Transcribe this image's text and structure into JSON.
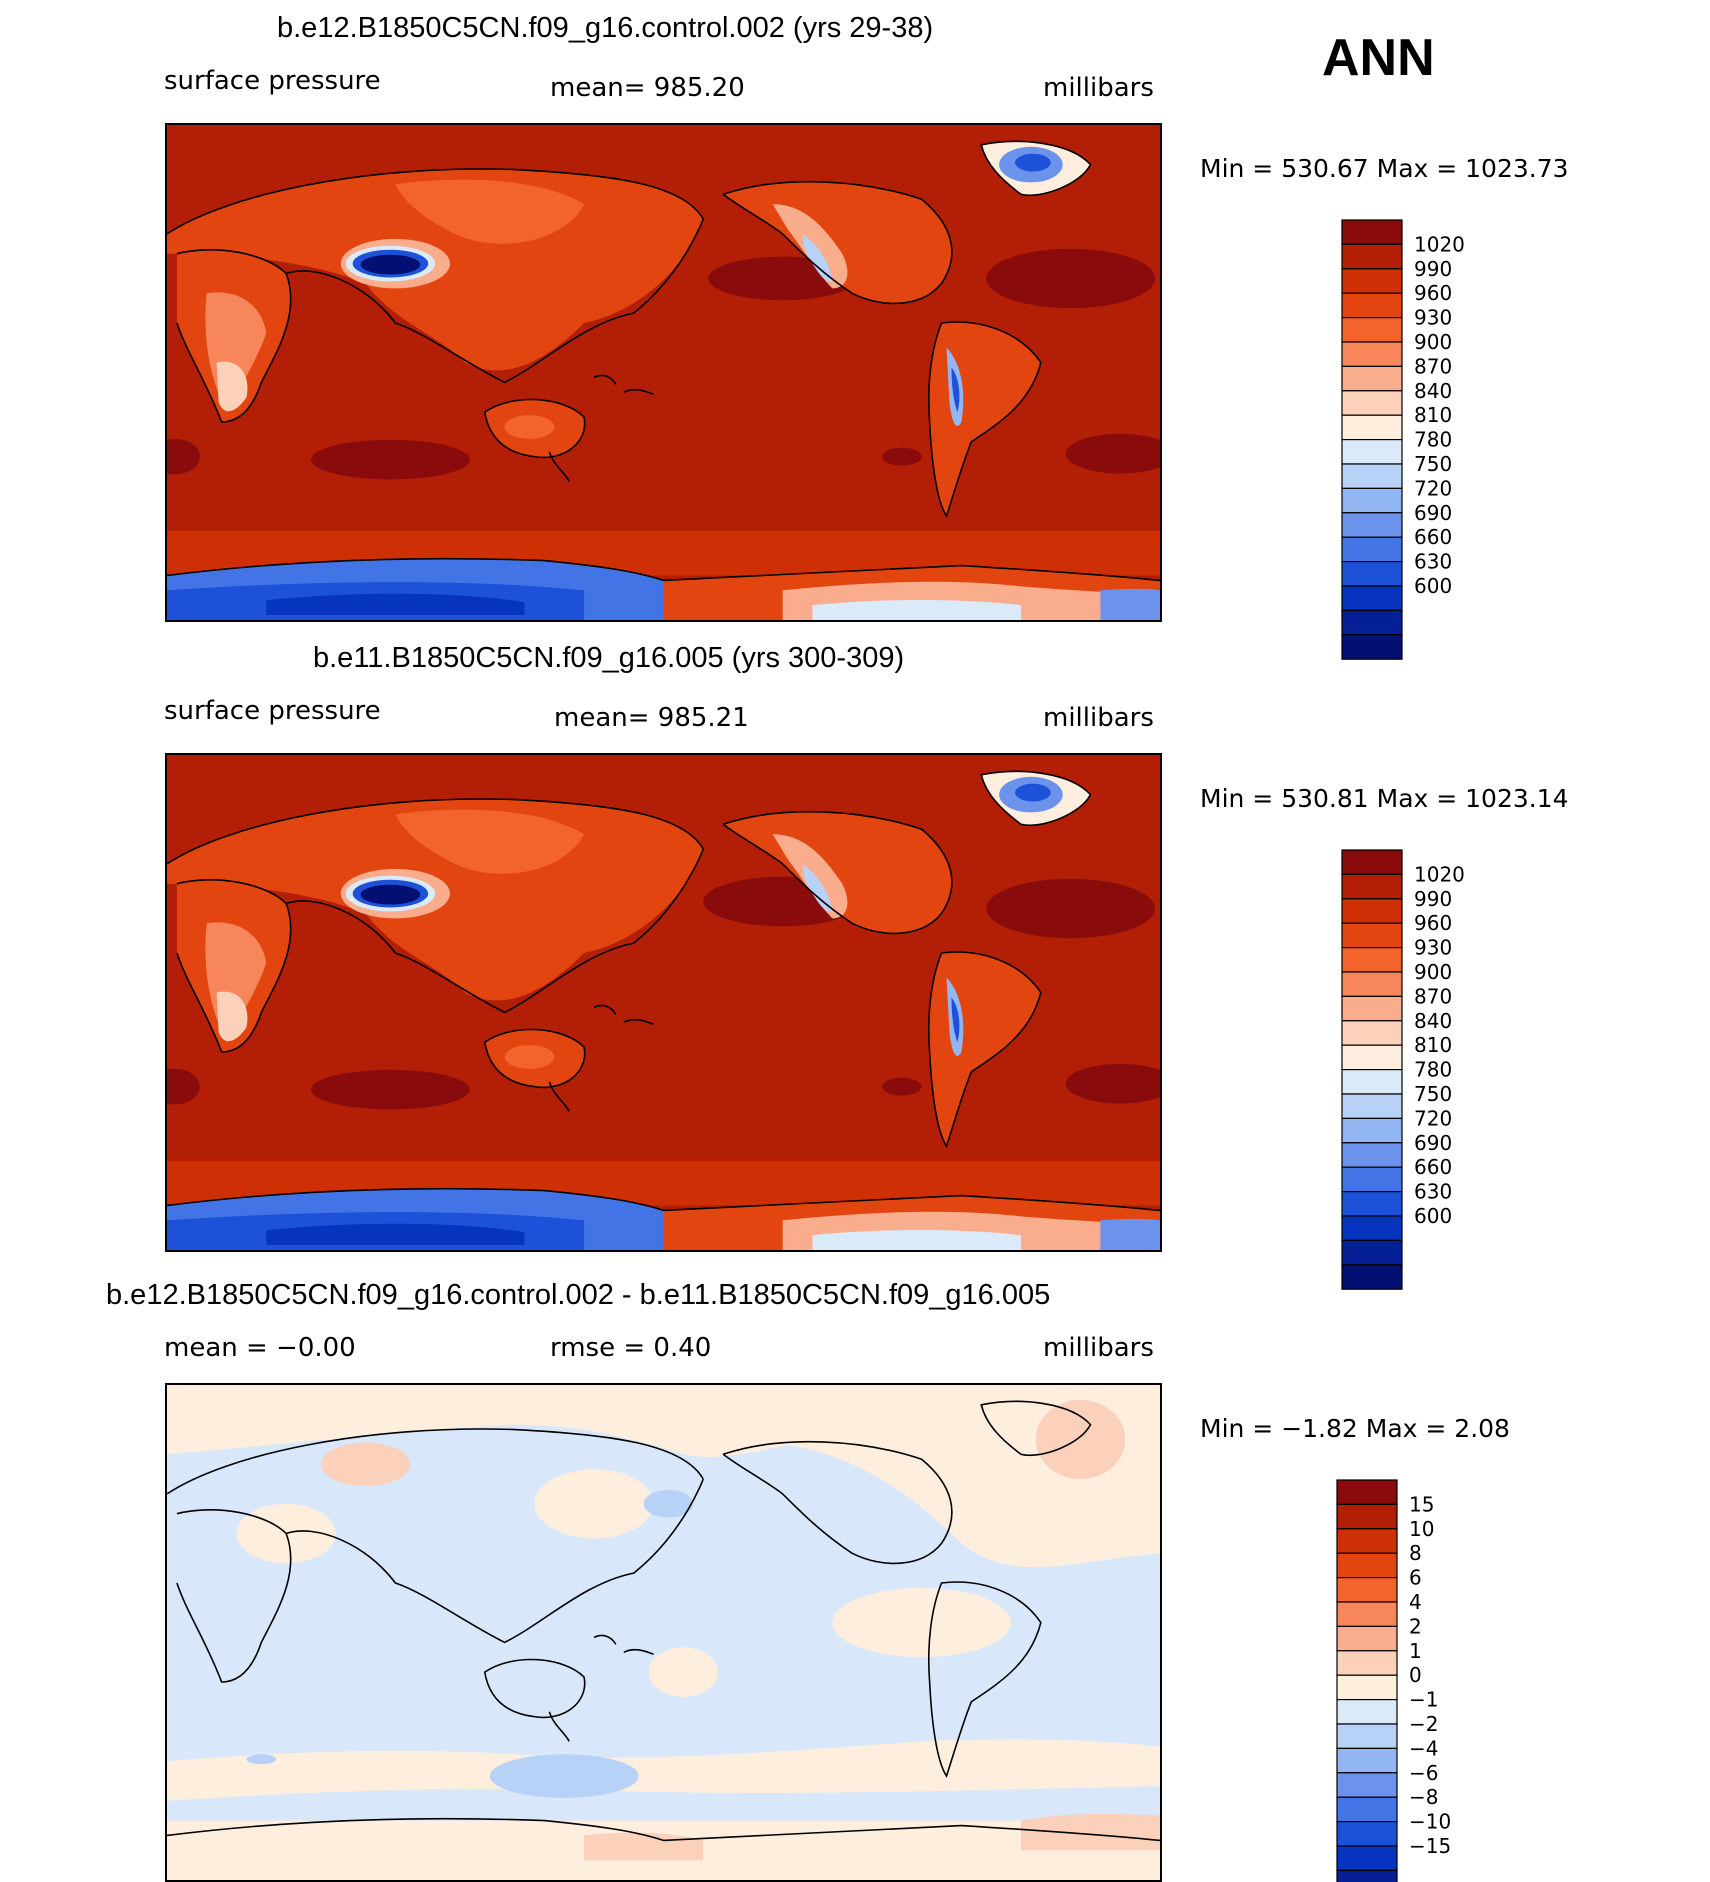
{
  "season": "ANN",
  "chart_data": [
    {
      "type": "heatmap",
      "title": "b.e12.B1850C5CN.f09_g16.control.002 (yrs 29-38)",
      "variable": "surface pressure",
      "mean_text": "mean=  985.20",
      "units": "millibars",
      "minmax_text": "Min  =  530.67  Max  =  1023.73",
      "min": 530.67,
      "max": 1023.73,
      "mean": 985.2,
      "colorbar": {
        "levels": [
          "1020",
          "990",
          "960",
          "930",
          "900",
          "870",
          "840",
          "810",
          "780",
          "750",
          "720",
          "690",
          "660",
          "630",
          "600"
        ],
        "colors": [
          "#8a0b0b",
          "#b21e06",
          "#cf2f04",
          "#e34510",
          "#f2642b",
          "#f7875a",
          "#f9ad8c",
          "#fbd1bb",
          "#fdeede",
          "#dbeaf9",
          "#b7d2f6",
          "#92b6f1",
          "#6b93ec",
          "#4374e6",
          "#1d52d8",
          "#0734bf",
          "#051f96",
          "#040f73"
        ]
      }
    },
    {
      "type": "heatmap",
      "title": "b.e11.B1850C5CN.f09_g16.005 (yrs 300-309)",
      "variable": "surface pressure",
      "mean_text": "mean=  985.21",
      "units": "millibars",
      "minmax_text": "Min  =  530.81  Max  =  1023.14",
      "min": 530.81,
      "max": 1023.14,
      "mean": 985.21,
      "colorbar": {
        "levels": [
          "1020",
          "990",
          "960",
          "930",
          "900",
          "870",
          "840",
          "810",
          "780",
          "750",
          "720",
          "690",
          "660",
          "630",
          "600"
        ],
        "colors": [
          "#8a0b0b",
          "#b21e06",
          "#cf2f04",
          "#e34510",
          "#f2642b",
          "#f7875a",
          "#f9ad8c",
          "#fbd1bb",
          "#fdeede",
          "#dbeaf9",
          "#b7d2f6",
          "#92b6f1",
          "#6b93ec",
          "#4374e6",
          "#1d52d8",
          "#0734bf",
          "#051f96",
          "#040f73"
        ]
      }
    },
    {
      "type": "heatmap",
      "title": "b.e12.B1850C5CN.f09_g16.control.002 - b.e11.B1850C5CN.f09_g16.005",
      "mean_text": "mean  =     −0.00",
      "rmse_text": "rmse  =      0.40",
      "units": "millibars",
      "minmax_text": "Min  =    −1.82  Max  =      2.08",
      "min": -1.82,
      "max": 2.08,
      "mean": -0.0,
      "rmse": 0.4,
      "colorbar": {
        "levels": [
          "15",
          "10",
          "8",
          "6",
          "4",
          "2",
          "1",
          "0",
          "−1",
          "−2",
          "−4",
          "−6",
          "−8",
          "−10",
          "−15"
        ],
        "colors": [
          "#8a0b0b",
          "#b21e06",
          "#cf2f04",
          "#e34510",
          "#f2642b",
          "#f7875a",
          "#f9ad8c",
          "#fbd1bb",
          "#fdeede",
          "#dbeaf9",
          "#b7d2f6",
          "#92b6f1",
          "#6b93ec",
          "#4374e6",
          "#1d52d8",
          "#0734bf",
          "#051f96",
          "#040f73"
        ]
      }
    }
  ]
}
